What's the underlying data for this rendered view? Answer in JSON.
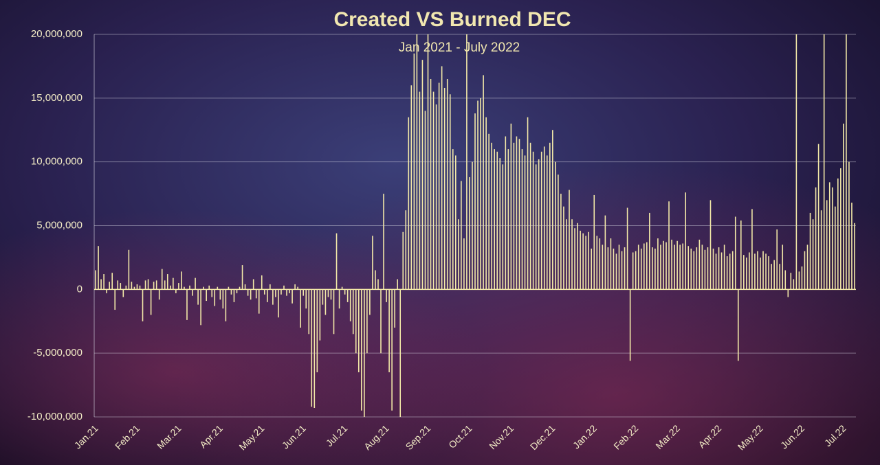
{
  "chart_data": {
    "type": "bar",
    "title": "Created VS Burned DEC",
    "subtitle": "Jan 2021 - July 2022",
    "color": "#f3e9a8",
    "grid": true,
    "ylim": [
      -10000000,
      20000000
    ],
    "yticks": [
      {
        "value": -10000000,
        "label": "-10,000,000"
      },
      {
        "value": -5000000,
        "label": "-5,000,000"
      },
      0,
      {
        "value": 5000000,
        "label": "5,000,000"
      },
      {
        "value": 10000000,
        "label": "10,000,000"
      },
      {
        "value": 15000000,
        "label": "15,000,000"
      },
      {
        "value": 20000000,
        "label": "20,000,000"
      }
    ],
    "categories": [
      "Jan.21",
      null,
      null,
      null,
      null,
      null,
      null,
      null,
      null,
      null,
      null,
      null,
      null,
      null,
      null,
      "Feb.21",
      null,
      null,
      null,
      null,
      null,
      null,
      null,
      null,
      null,
      null,
      null,
      null,
      null,
      null,
      "Mar.21",
      null,
      null,
      null,
      null,
      null,
      null,
      null,
      null,
      null,
      null,
      null,
      null,
      null,
      null,
      "Apr.21",
      null,
      null,
      null,
      null,
      null,
      null,
      null,
      null,
      null,
      null,
      null,
      null,
      null,
      null,
      "May.21",
      null,
      null,
      null,
      null,
      null,
      null,
      null,
      null,
      null,
      null,
      null,
      null,
      null,
      null,
      "Jun.21",
      null,
      null,
      null,
      null,
      null,
      null,
      null,
      null,
      null,
      null,
      null,
      null,
      null,
      null,
      "Jul.21",
      null,
      null,
      null,
      null,
      null,
      null,
      null,
      null,
      null,
      null,
      null,
      null,
      null,
      null,
      "Aug.21",
      null,
      null,
      null,
      null,
      null,
      null,
      null,
      null,
      null,
      null,
      null,
      null,
      null,
      null,
      "Sep.21",
      null,
      null,
      null,
      null,
      null,
      null,
      null,
      null,
      null,
      null,
      null,
      null,
      null,
      null,
      "Oct.21",
      null,
      null,
      null,
      null,
      null,
      null,
      null,
      null,
      null,
      null,
      null,
      null,
      null,
      null,
      "Nov.21",
      null,
      null,
      null,
      null,
      null,
      null,
      null,
      null,
      null,
      null,
      null,
      null,
      null,
      null,
      "Dec.21",
      null,
      null,
      null,
      null,
      null,
      null,
      null,
      null,
      null,
      null,
      null,
      null,
      null,
      null,
      "Jan.22",
      null,
      null,
      null,
      null,
      null,
      null,
      null,
      null,
      null,
      null,
      null,
      null,
      null,
      null,
      "Feb.22",
      null,
      null,
      null,
      null,
      null,
      null,
      null,
      null,
      null,
      null,
      null,
      null,
      null,
      null,
      "Mar.22",
      null,
      null,
      null,
      null,
      null,
      null,
      null,
      null,
      null,
      null,
      null,
      null,
      null,
      null,
      "Apr.22",
      null,
      null,
      null,
      null,
      null,
      null,
      null,
      null,
      null,
      null,
      null,
      null,
      null,
      null,
      "May.22",
      null,
      null,
      null,
      null,
      null,
      null,
      null,
      null,
      null,
      null,
      null,
      null,
      null,
      null,
      "Jun.22",
      null,
      null,
      null,
      null,
      null,
      null,
      null,
      null,
      null,
      null,
      null,
      null,
      null,
      null,
      "Jul.22",
      null,
      null,
      null,
      null
    ],
    "values": [
      1500000,
      3400000,
      800000,
      1200000,
      -300000,
      600000,
      1300000,
      -1600000,
      700000,
      500000,
      -600000,
      300000,
      3100000,
      600000,
      200000,
      400000,
      300000,
      -2500000,
      700000,
      800000,
      -2000000,
      600000,
      700000,
      -800000,
      1600000,
      700000,
      1200000,
      300000,
      900000,
      -300000,
      500000,
      1400000,
      200000,
      -2400000,
      300000,
      -500000,
      900000,
      -1200000,
      -2800000,
      200000,
      -900000,
      300000,
      -600000,
      -1300000,
      200000,
      -800000,
      -1500000,
      -2500000,
      200000,
      -400000,
      -1000000,
      -300000,
      200000,
      1900000,
      400000,
      -500000,
      -800000,
      800000,
      -700000,
      -1900000,
      1100000,
      -400000,
      -1000000,
      400000,
      -1200000,
      -600000,
      -2200000,
      -400000,
      300000,
      -500000,
      -300000,
      -1100000,
      400000,
      200000,
      -3000000,
      -500000,
      -1500000,
      -3500000,
      -9200000,
      -9300000,
      -6500000,
      -4000000,
      -1200000,
      -2000000,
      -600000,
      -800000,
      -3500000,
      4400000,
      -1500000,
      200000,
      -400000,
      -1000000,
      -2500000,
      -3500000,
      -5000000,
      -6500000,
      -9500000,
      -10000000,
      -5000000,
      -2000000,
      4200000,
      1500000,
      800000,
      -5000000,
      7500000,
      -1000000,
      -6500000,
      -9500000,
      -3000000,
      800000,
      -10000000,
      4500000,
      6200000,
      13500000,
      16000000,
      18500000,
      20000000,
      15500000,
      18000000,
      14000000,
      20000000,
      16500000,
      15500000,
      14500000,
      16200000,
      17500000,
      15800000,
      16500000,
      15300000,
      11000000,
      10500000,
      5500000,
      8500000,
      4000000,
      20000000,
      8800000,
      10000000,
      13800000,
      14800000,
      15000000,
      16800000,
      13500000,
      12200000,
      11500000,
      11000000,
      10800000,
      10300000,
      9800000,
      12000000,
      11000000,
      13000000,
      11500000,
      12000000,
      11800000,
      11000000,
      10500000,
      13500000,
      11500000,
      10800000,
      9800000,
      10200000,
      10800000,
      11200000,
      10500000,
      11500000,
      12500000,
      10000000,
      9000000,
      7500000,
      6500000,
      5500000,
      7800000,
      5500000,
      4800000,
      5200000,
      4600000,
      4400000,
      4200000,
      4500000,
      3200000,
      7400000,
      4200000,
      4000000,
      3500000,
      5800000,
      3300000,
      4000000,
      3200000,
      2800000,
      3500000,
      3000000,
      3300000,
      6400000,
      -5600000,
      2900000,
      3000000,
      3500000,
      3200000,
      3600000,
      3700000,
      6000000,
      3300000,
      3200000,
      4000000,
      3500000,
      3800000,
      3700000,
      6900000,
      3900000,
      3500000,
      3800000,
      3500000,
      3600000,
      7600000,
      3400000,
      3200000,
      3000000,
      3300000,
      3900000,
      3500000,
      3100000,
      3300000,
      7000000,
      3200000,
      2800000,
      3300000,
      2900000,
      3500000,
      2600000,
      2800000,
      3000000,
      5700000,
      -5600000,
      5400000,
      2700000,
      2500000,
      2900000,
      6300000,
      2800000,
      3000000,
      2500000,
      3000000,
      2800000,
      2600000,
      2000000,
      2300000,
      4700000,
      2000000,
      3500000,
      1500000,
      -600000,
      1300000,
      800000,
      20000000,
      1400000,
      1800000,
      3000000,
      3500000,
      6000000,
      5500000,
      8000000,
      11400000,
      6200000,
      20000000,
      7000000,
      8400000,
      8000000,
      6500000,
      8700000,
      9500000,
      13000000,
      20000000,
      10000000,
      6800000,
      5200000
    ]
  }
}
